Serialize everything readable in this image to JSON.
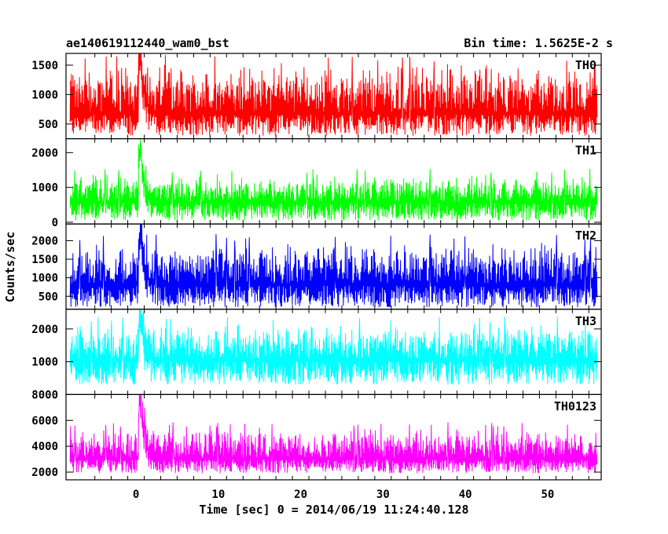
{
  "chart_data": {
    "type": "line",
    "title_left": "ae140619112440_wam0_bst",
    "title_right": "Bin time: 1.5625E-2 s",
    "xlabel": "Time [sec] 0 = 2014/06/19 11:24:40.128",
    "ylabel": "Counts/sec",
    "xlim": [
      -8.5,
      56.5
    ],
    "x_ticks": [
      0,
      10,
      20,
      30,
      40,
      50
    ],
    "x_tick_labels": [
      "0",
      "10",
      "20",
      "30",
      "40",
      "50"
    ],
    "data_x_range": [
      -8,
      56
    ],
    "grid": false,
    "panels": [
      {
        "name": "TH0",
        "color": "#ff0000",
        "ylim": [
          250,
          1700
        ],
        "y_ticks": [
          500,
          1000,
          1500
        ],
        "y_tick_labels": [
          "500",
          "1000",
          "1500"
        ],
        "baseline_mean": 700,
        "noise_low": 300,
        "noise_high": 1550,
        "burst_peak": 1700,
        "burst_time": 0.5
      },
      {
        "name": "TH1",
        "color": "#00ff00",
        "ylim": [
          -50,
          2400
        ],
        "y_ticks": [
          0,
          1000,
          2000
        ],
        "y_tick_labels": [
          "0",
          "1000",
          "2000"
        ],
        "baseline_mean": 600,
        "noise_low": 50,
        "noise_high": 1400,
        "burst_peak": 2400,
        "burst_time": 0.5
      },
      {
        "name": "TH2",
        "color": "#0000ff",
        "ylim": [
          150,
          2450
        ],
        "y_ticks": [
          500,
          1000,
          1500,
          2000
        ],
        "y_tick_labels": [
          "500",
          "1000",
          "1500",
          "2000"
        ],
        "baseline_mean": 850,
        "noise_low": 200,
        "noise_high": 2000,
        "burst_peak": 2450,
        "burst_time": 0.5
      },
      {
        "name": "TH3",
        "color": "#00ffff",
        "ylim": [
          0,
          2600
        ],
        "y_ticks": [
          1000,
          2000
        ],
        "y_tick_labels": [
          "1000",
          "2000"
        ],
        "baseline_mean": 1100,
        "noise_low": 300,
        "noise_high": 2200,
        "burst_peak": 2600,
        "burst_time": 0.5
      },
      {
        "name": "TH0123",
        "color": "#ff00ff",
        "ylim": [
          1400,
          8000
        ],
        "y_ticks": [
          2000,
          4000,
          6000,
          8000
        ],
        "y_tick_labels": [
          "2000",
          "4000",
          "6000",
          "8000"
        ],
        "baseline_mean": 3100,
        "noise_low": 1900,
        "noise_high": 5500,
        "burst_peak": 8000,
        "burst_time": 0.5
      }
    ]
  }
}
